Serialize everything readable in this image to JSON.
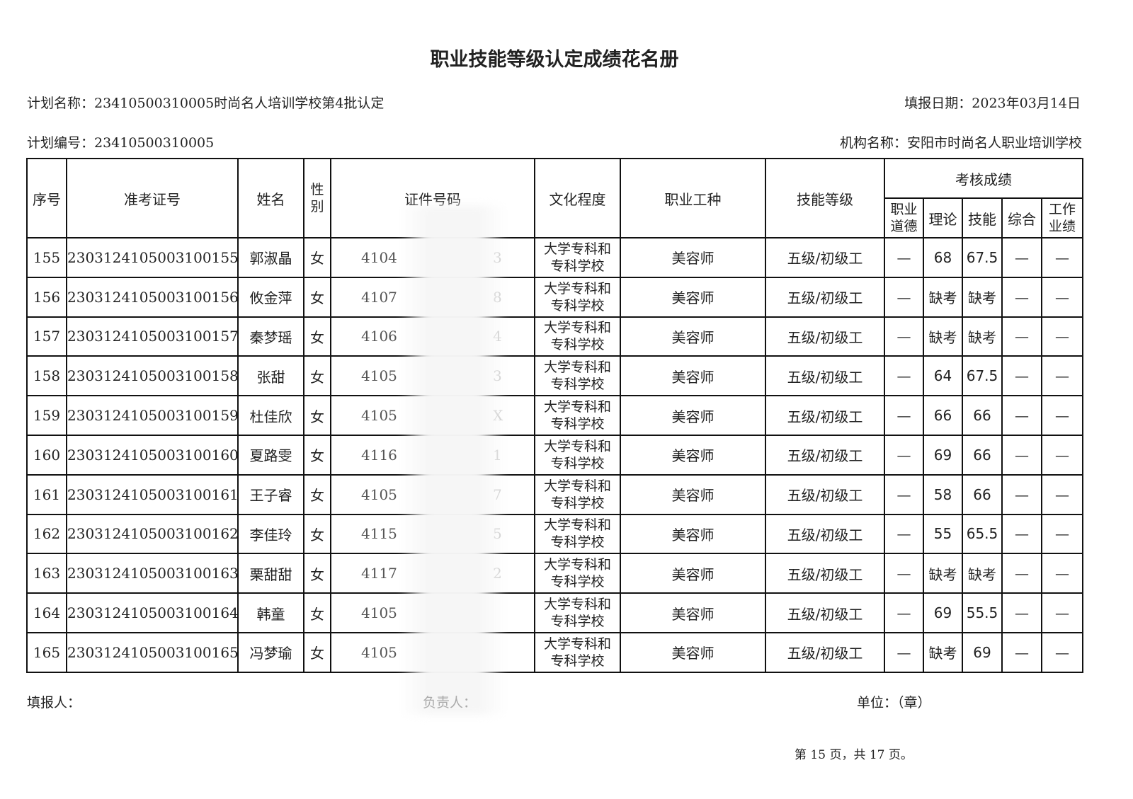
{
  "title": "职业技能等级认定成绩花名册",
  "plan_name": "计划名称：23410500310005时尚名人培训学校第4批认定",
  "fill_date": "填报日期：2023年03月14日",
  "plan_no": "计划编号：23410500310005",
  "org_name": "机构名称：安阳市时尚名人职业培训学校",
  "headers": {
    "seq": "序号",
    "exam_no": "准考证号",
    "name": "姓名",
    "gender": "性别",
    "id_no": "证件号码",
    "education": "文化程度",
    "occupation": "职业工种",
    "level": "技能等级",
    "scores": "考核成绩",
    "ethics": "职业道德",
    "theory": "理论",
    "skill": "技能",
    "overall": "综合",
    "work": "工作业绩"
  },
  "rows": [
    {
      "seq": "155",
      "exam_no": "2303124105003100155",
      "name": "郭淑晶",
      "gender": "女",
      "id_prefix": "4104",
      "id_suffix": "3",
      "edu1": "大学专科和",
      "edu2": "专科学校",
      "occupation": "美容师",
      "level": "五级/初级工",
      "ethics": "—",
      "theory": "68",
      "skill": "67.5",
      "overall": "—",
      "work": "—"
    },
    {
      "seq": "156",
      "exam_no": "2303124105003100156",
      "name": "攸金萍",
      "gender": "女",
      "id_prefix": "4107",
      "id_suffix": "8",
      "edu1": "大学专科和",
      "edu2": "专科学校",
      "occupation": "美容师",
      "level": "五级/初级工",
      "ethics": "—",
      "theory": "缺考",
      "skill": "缺考",
      "overall": "—",
      "work": "—"
    },
    {
      "seq": "157",
      "exam_no": "2303124105003100157",
      "name": "秦梦瑶",
      "gender": "女",
      "id_prefix": "4106",
      "id_suffix": "4",
      "edu1": "大学专科和",
      "edu2": "专科学校",
      "occupation": "美容师",
      "level": "五级/初级工",
      "ethics": "—",
      "theory": "缺考",
      "skill": "缺考",
      "overall": "—",
      "work": "—"
    },
    {
      "seq": "158",
      "exam_no": "2303124105003100158",
      "name": "张甜",
      "gender": "女",
      "id_prefix": "4105",
      "id_suffix": "3",
      "edu1": "大学专科和",
      "edu2": "专科学校",
      "occupation": "美容师",
      "level": "五级/初级工",
      "ethics": "—",
      "theory": "64",
      "skill": "67.5",
      "overall": "—",
      "work": "—"
    },
    {
      "seq": "159",
      "exam_no": "2303124105003100159",
      "name": "杜佳欣",
      "gender": "女",
      "id_prefix": "4105",
      "id_suffix": "X",
      "edu1": "大学专科和",
      "edu2": "专科学校",
      "occupation": "美容师",
      "level": "五级/初级工",
      "ethics": "—",
      "theory": "66",
      "skill": "66",
      "overall": "—",
      "work": "—"
    },
    {
      "seq": "160",
      "exam_no": "2303124105003100160",
      "name": "夏路雯",
      "gender": "女",
      "id_prefix": "4116",
      "id_suffix": "1",
      "edu1": "大学专科和",
      "edu2": "专科学校",
      "occupation": "美容师",
      "level": "五级/初级工",
      "ethics": "—",
      "theory": "69",
      "skill": "66",
      "overall": "—",
      "work": "—"
    },
    {
      "seq": "161",
      "exam_no": "2303124105003100161",
      "name": "王子睿",
      "gender": "女",
      "id_prefix": "4105",
      "id_suffix": "7",
      "edu1": "大学专科和",
      "edu2": "专科学校",
      "occupation": "美容师",
      "level": "五级/初级工",
      "ethics": "—",
      "theory": "58",
      "skill": "66",
      "overall": "—",
      "work": "—"
    },
    {
      "seq": "162",
      "exam_no": "2303124105003100162",
      "name": "李佳玲",
      "gender": "女",
      "id_prefix": "4115",
      "id_suffix": "5",
      "edu1": "大学专科和",
      "edu2": "专科学校",
      "occupation": "美容师",
      "level": "五级/初级工",
      "ethics": "—",
      "theory": "55",
      "skill": "65.5",
      "overall": "—",
      "work": "—"
    },
    {
      "seq": "163",
      "exam_no": "2303124105003100163",
      "name": "栗甜甜",
      "gender": "女",
      "id_prefix": "4117",
      "id_suffix": "2",
      "edu1": "大学专科和",
      "edu2": "专科学校",
      "occupation": "美容师",
      "level": "五级/初级工",
      "ethics": "—",
      "theory": "缺考",
      "skill": "缺考",
      "overall": "—",
      "work": "—"
    },
    {
      "seq": "164",
      "exam_no": "2303124105003100164",
      "name": "韩童",
      "gender": "女",
      "id_prefix": "4105",
      "id_suffix": "",
      "edu1": "大学专科和",
      "edu2": "专科学校",
      "occupation": "美容师",
      "level": "五级/初级工",
      "ethics": "—",
      "theory": "69",
      "skill": "55.5",
      "overall": "—",
      "work": "—"
    },
    {
      "seq": "165",
      "exam_no": "2303124105003100165",
      "name": "冯梦瑜",
      "gender": "女",
      "id_prefix": "4105",
      "id_suffix": "",
      "edu1": "大学专科和",
      "edu2": "专科学校",
      "occupation": "美容师",
      "level": "五级/初级工",
      "ethics": "—",
      "theory": "缺考",
      "skill": "69",
      "overall": "—",
      "work": "—"
    }
  ],
  "footer": {
    "filler": "填报人：",
    "leader": "负责人：",
    "unit": "单位：（章）",
    "page": "第 15 页，共 17 页。"
  }
}
